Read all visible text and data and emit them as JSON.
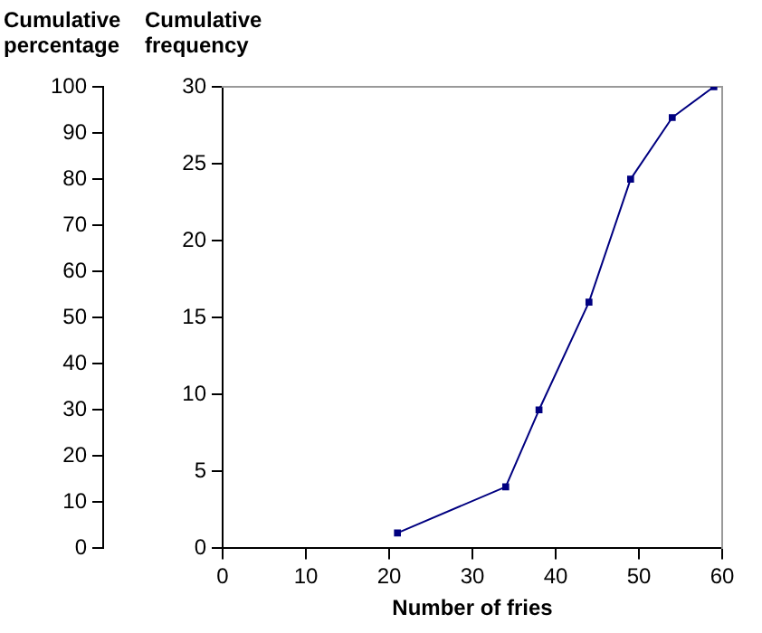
{
  "chart_data": {
    "type": "line",
    "xlabel": "Number of fries",
    "ylabel": "Cumulative frequency",
    "y2label": "Cumulative percentage",
    "x": [
      21,
      34,
      38,
      44,
      49,
      54,
      59
    ],
    "series": [
      {
        "color": "#000080",
        "values": [
          1,
          4,
          9,
          16,
          24,
          28,
          30
        ]
      }
    ],
    "xlim": [
      0,
      60
    ],
    "xticks": [
      0,
      10,
      20,
      30,
      40,
      50,
      60
    ],
    "ylim": [
      0,
      30
    ],
    "yticks": [
      0,
      5,
      10,
      15,
      20,
      25,
      30
    ],
    "y2lim": [
      0,
      100
    ],
    "y2ticks": [
      0,
      10,
      20,
      30,
      40,
      50,
      60,
      70,
      80,
      90,
      100
    ],
    "grid": false,
    "legend": false,
    "marker": "square",
    "line_style": "solid"
  }
}
